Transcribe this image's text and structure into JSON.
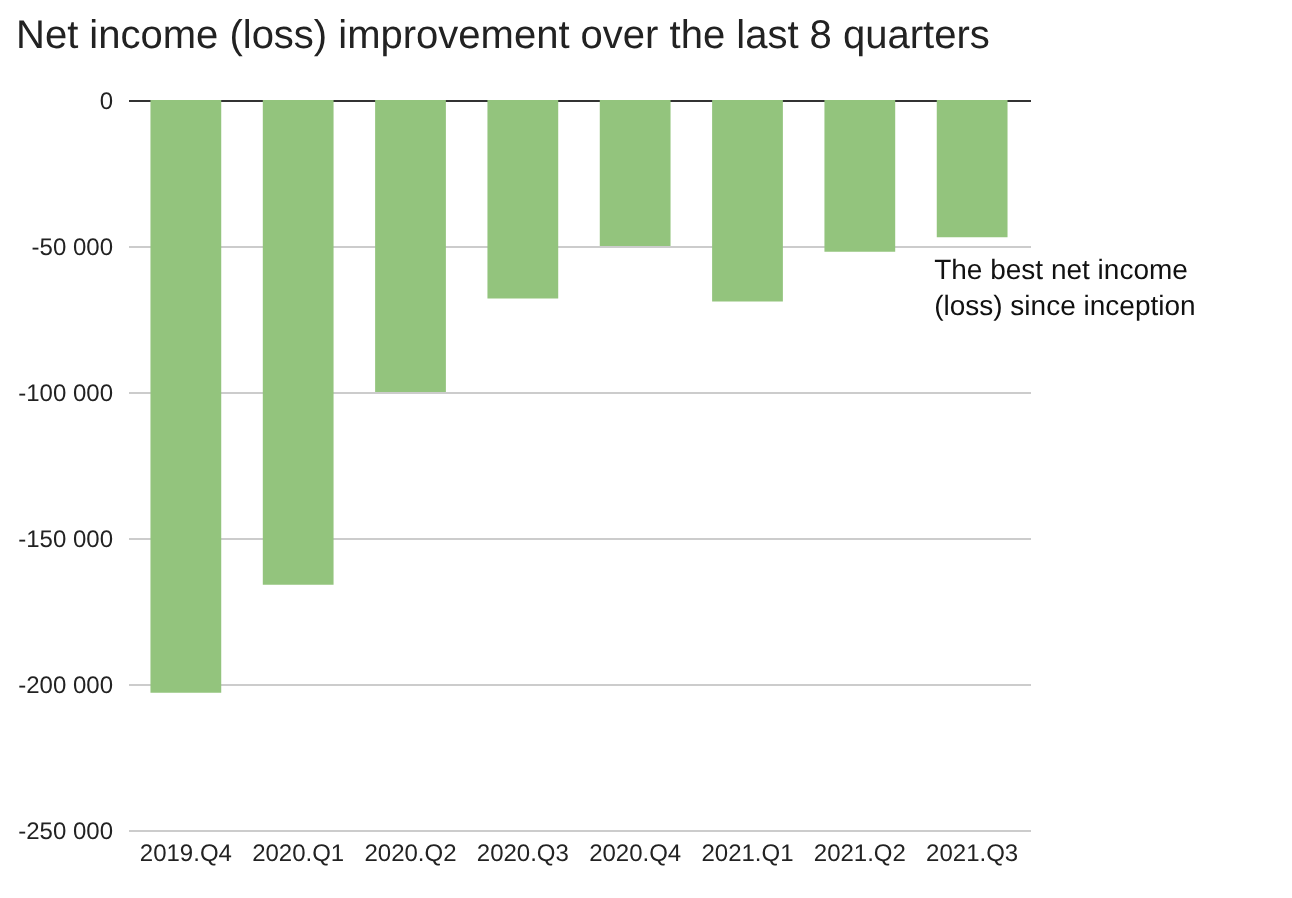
{
  "chart_data": {
    "type": "bar",
    "title": "Net income (loss) improvement over the last 8 quarters",
    "categories": [
      "2019.Q4",
      "2020.Q1",
      "2020.Q2",
      "2020.Q3",
      "2020.Q4",
      "2021.Q1",
      "2021.Q2",
      "2021.Q3"
    ],
    "values": [
      -203000,
      -166000,
      -100000,
      -68000,
      -50000,
      -69000,
      -52000,
      -47000
    ],
    "color": "#93c47d",
    "ylim": [
      -250000,
      0
    ],
    "yticks": [
      {
        "value": -250000,
        "label": "-250 000"
      },
      {
        "value": -200000,
        "label": "-200 000"
      },
      {
        "value": -150000,
        "label": "-150 000"
      },
      {
        "value": -100000,
        "label": "-100 000"
      },
      {
        "value": -50000,
        "label": "-50 000"
      },
      0
    ],
    "grid": "y",
    "annotations": [
      {
        "text": "The best net income (loss) since inception",
        "x": "2021.Q3",
        "y": -47000
      }
    ]
  }
}
